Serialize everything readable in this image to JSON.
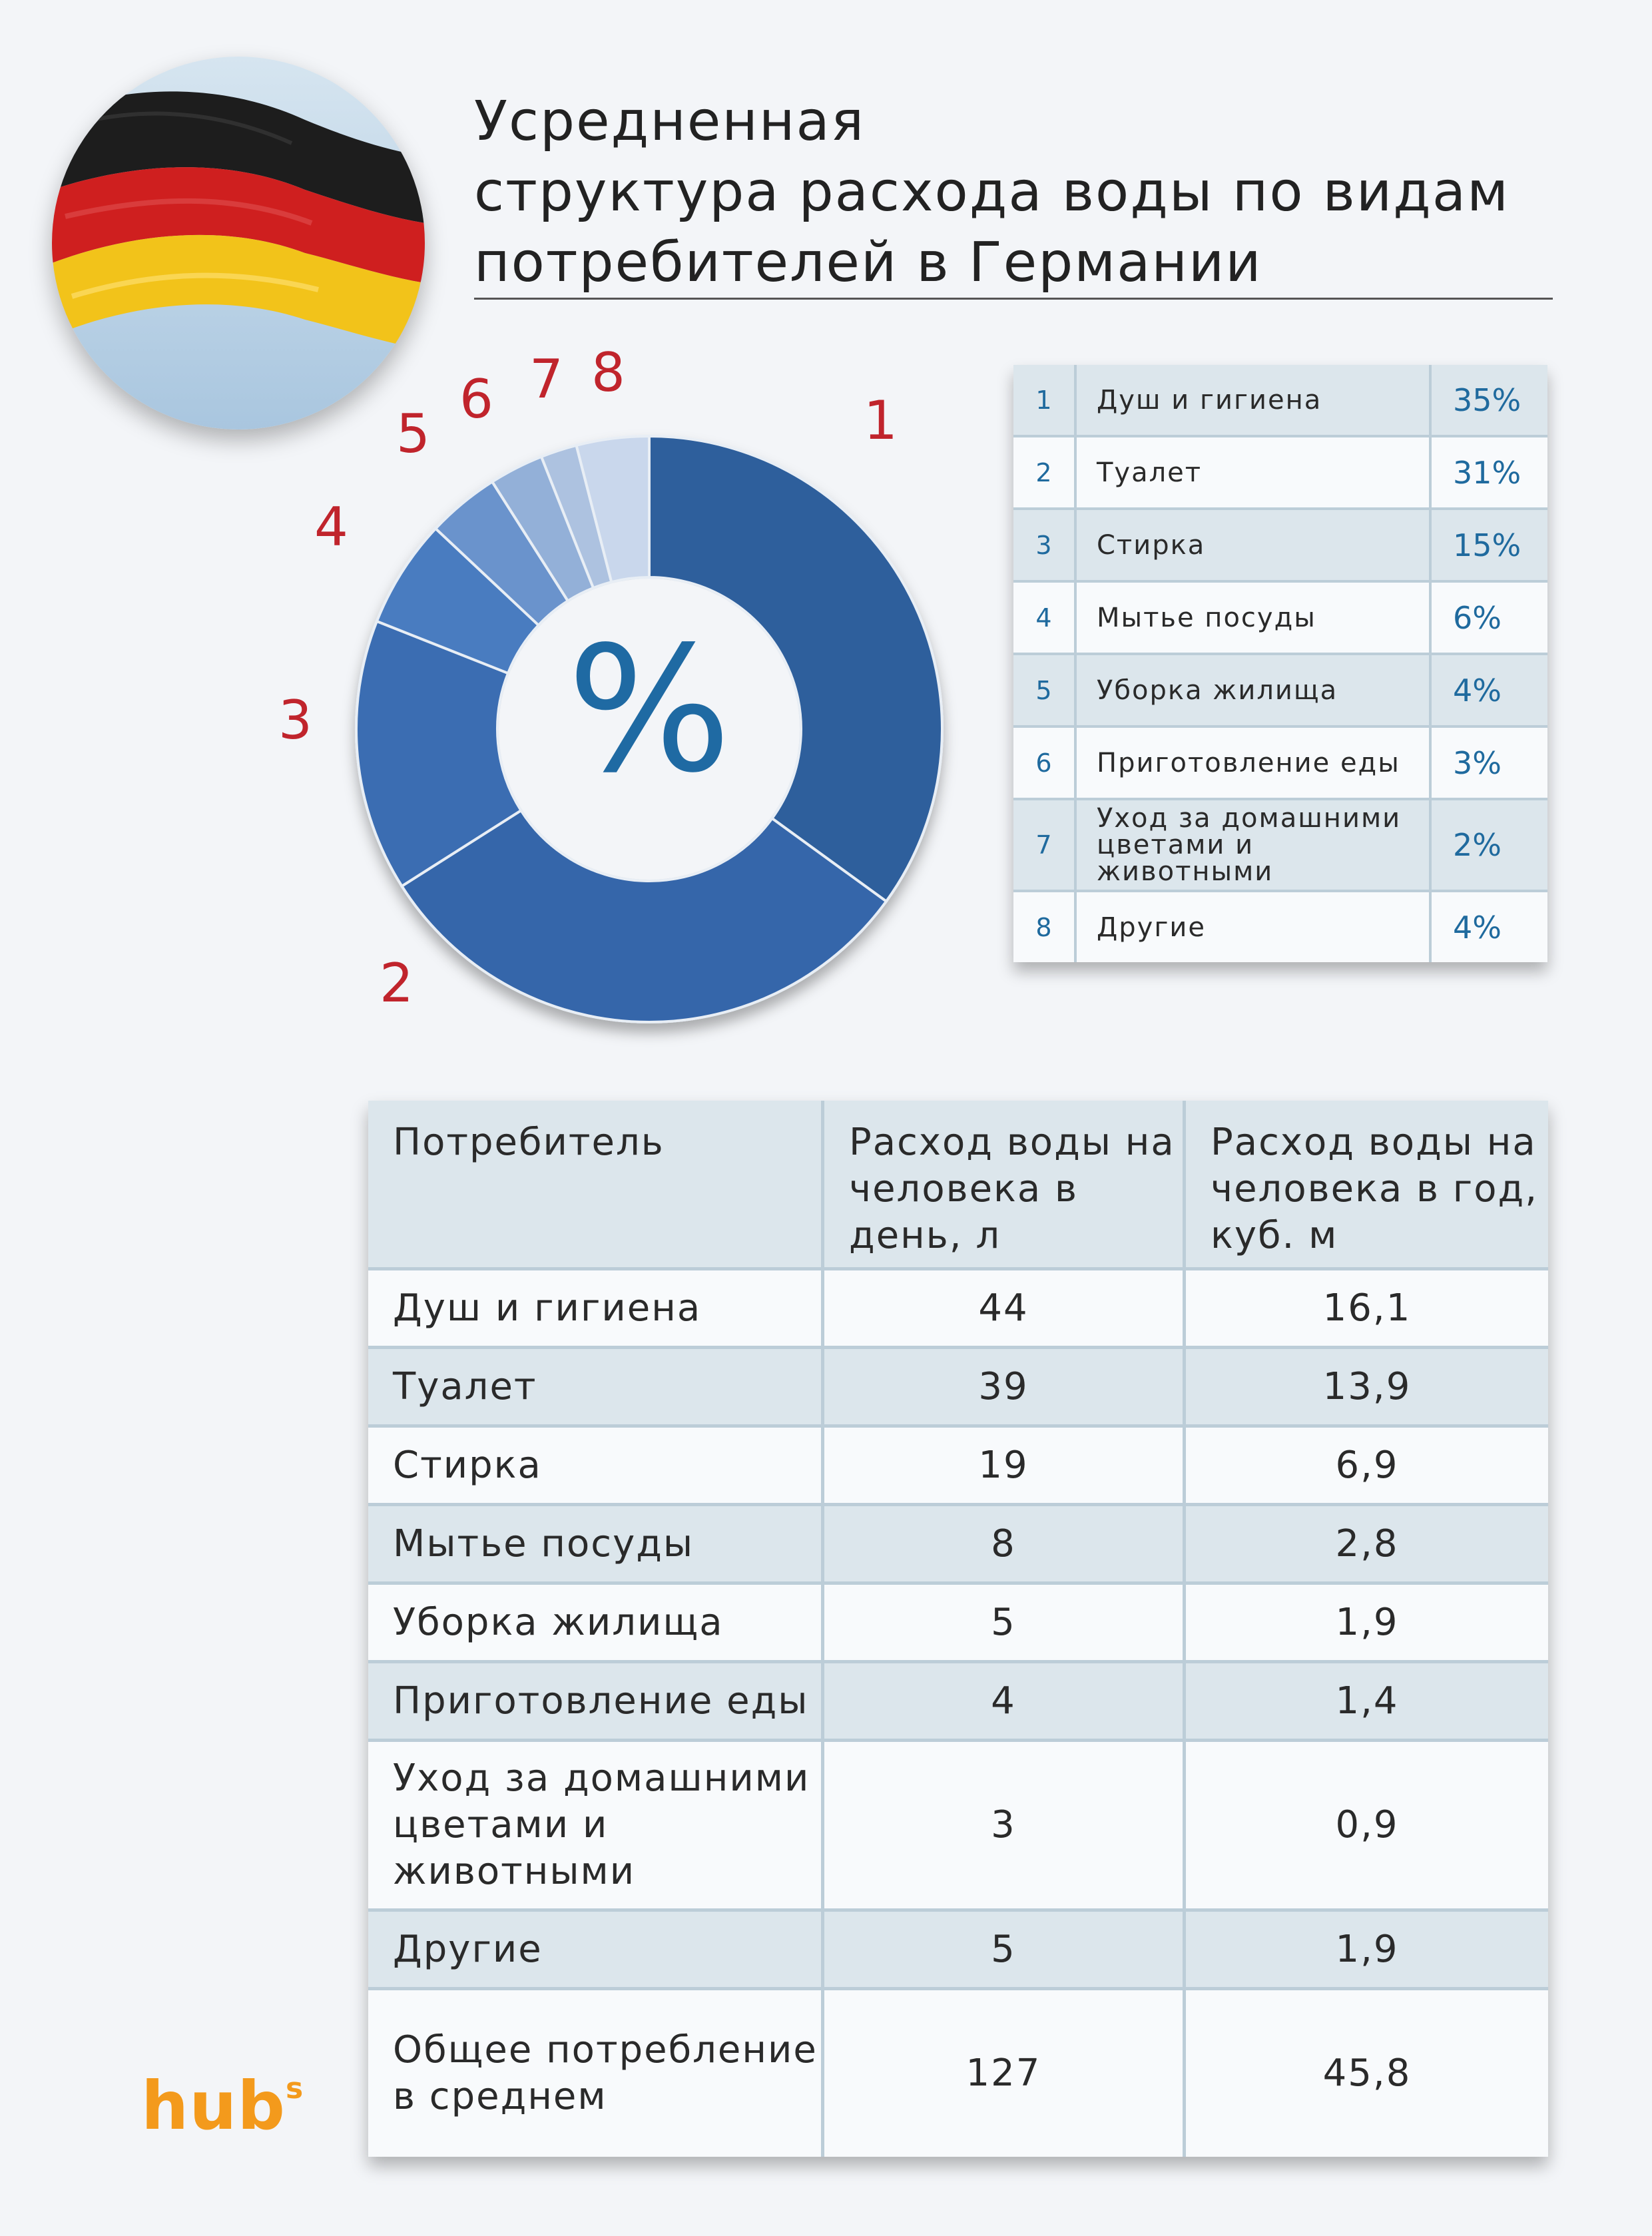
{
  "title_lines": [
    "Усредненная",
    "структура расхода воды по видам",
    "потребителей в Германии"
  ],
  "chart_data": {
    "type": "pie",
    "center_label": "%",
    "segment_numbers": [
      "1",
      "2",
      "3",
      "4",
      "5",
      "6",
      "7",
      "8"
    ],
    "values": [
      35,
      31,
      15,
      6,
      4,
      3,
      2,
      4
    ],
    "categories": [
      "Душ и гигиена",
      "Туалет",
      "Стирка",
      "Мытье посуды",
      "Уборка жилища",
      "Приготовление еды",
      "Уход за домашними цветами и животными",
      "Другие"
    ],
    "colors": [
      "#2f5f9c",
      "#3566aa",
      "#3a6db2",
      "#4a7cc0",
      "#6a93cc",
      "#93b0d8",
      "#adc2e0",
      "#c9d7ec"
    ]
  },
  "legend": [
    {
      "num": "1",
      "label": "Душ и гигиена",
      "pct": "35%"
    },
    {
      "num": "2",
      "label": "Туалет",
      "pct": "31%"
    },
    {
      "num": "3",
      "label": "Стирка",
      "pct": "15%"
    },
    {
      "num": "4",
      "label": "Мытье посуды",
      "pct": "6%"
    },
    {
      "num": "5",
      "label": "Уборка жилища",
      "pct": "4%"
    },
    {
      "num": "6",
      "label": "Приготовление еды",
      "pct": "3%"
    },
    {
      "num": "7",
      "label": "Уход за домашними цветами и животными",
      "pct": "2%"
    },
    {
      "num": "8",
      "label": "Другие",
      "pct": "4%"
    }
  ],
  "table": {
    "headers": [
      "Потребитель",
      "Расход воды на человека в день, л",
      "Расход воды на человека в год, куб. м"
    ],
    "rows": [
      [
        "Душ и гигиена",
        "44",
        "16,1"
      ],
      [
        "Туалет",
        "39",
        "13,9"
      ],
      [
        "Стирка",
        "19",
        "6,9"
      ],
      [
        "Мытье посуды",
        "8",
        "2,8"
      ],
      [
        "Уборка жилища",
        "5",
        "1,9"
      ],
      [
        "Приготовление еды",
        "4",
        "1,4"
      ],
      [
        "Уход за домашними цветами и животными",
        "3",
        "0,9"
      ],
      [
        "Другие",
        "5",
        "1,9"
      ],
      [
        "Общее потребление в среднем",
        "127",
        "45,8"
      ]
    ]
  },
  "logo": {
    "text": "hub",
    "sup": "s"
  }
}
